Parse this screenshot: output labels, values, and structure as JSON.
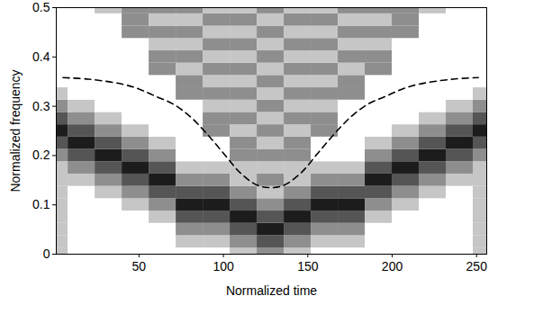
{
  "chart_data": {
    "type": "heatmap",
    "xlabel": "Normalized time",
    "ylabel": "Normalized frequency",
    "x": [
      0,
      16,
      32,
      48,
      64,
      80,
      96,
      112,
      128,
      144,
      160,
      176,
      192,
      208,
      224,
      240,
      256
    ],
    "y": [
      0,
      0.025,
      0.05,
      0.075,
      0.1,
      0.125,
      0.15,
      0.175,
      0.2,
      0.225,
      0.25,
      0.275,
      0.3,
      0.325,
      0.35,
      0.375,
      0.4,
      0.425,
      0.45,
      0.475,
      0.5
    ],
    "z": [
      [
        1,
        0,
        0,
        0,
        0,
        0,
        0,
        1,
        2,
        1,
        0,
        0,
        0,
        0,
        0,
        0,
        1
      ],
      [
        1,
        0,
        0,
        0,
        0,
        1,
        1,
        2,
        3,
        2,
        1,
        1,
        0,
        0,
        0,
        0,
        1
      ],
      [
        1,
        0,
        0,
        0,
        0,
        2,
        2,
        3,
        4,
        3,
        2,
        2,
        0,
        0,
        0,
        0,
        1
      ],
      [
        1,
        0,
        0,
        0,
        1,
        3,
        3,
        4,
        3,
        4,
        3,
        3,
        1,
        0,
        0,
        0,
        1
      ],
      [
        1,
        0,
        0,
        1,
        2,
        4,
        4,
        3,
        2,
        3,
        4,
        4,
        2,
        1,
        0,
        0,
        1
      ],
      [
        1,
        0,
        1,
        2,
        3,
        3,
        3,
        2,
        1,
        2,
        3,
        3,
        3,
        2,
        1,
        0,
        1
      ],
      [
        1,
        1,
        2,
        3,
        4,
        2,
        2,
        1,
        2,
        1,
        2,
        2,
        4,
        3,
        2,
        1,
        1
      ],
      [
        1,
        2,
        3,
        4,
        3,
        1,
        1,
        1,
        1,
        1,
        1,
        1,
        3,
        4,
        3,
        2,
        1
      ],
      [
        2,
        3,
        4,
        3,
        2,
        0,
        0,
        2,
        2,
        2,
        0,
        0,
        2,
        3,
        4,
        3,
        2
      ],
      [
        3,
        4,
        3,
        2,
        1,
        0,
        0,
        2,
        1,
        2,
        0,
        0,
        1,
        2,
        3,
        4,
        3
      ],
      [
        4,
        3,
        2,
        1,
        0,
        0,
        2,
        1,
        2,
        1,
        2,
        0,
        0,
        1,
        2,
        3,
        4
      ],
      [
        3,
        2,
        1,
        0,
        0,
        0,
        2,
        2,
        1,
        2,
        2,
        0,
        0,
        0,
        1,
        2,
        3
      ],
      [
        2,
        1,
        0,
        0,
        0,
        0,
        1,
        1,
        2,
        1,
        1,
        0,
        0,
        0,
        0,
        1,
        2
      ],
      [
        1,
        0,
        0,
        0,
        0,
        2,
        2,
        2,
        1,
        2,
        2,
        2,
        0,
        0,
        0,
        0,
        1
      ],
      [
        0,
        0,
        0,
        0,
        0,
        2,
        1,
        1,
        2,
        1,
        1,
        2,
        0,
        0,
        0,
        0,
        0
      ],
      [
        0,
        0,
        0,
        0,
        2,
        1,
        2,
        2,
        1,
        2,
        2,
        1,
        2,
        0,
        0,
        0,
        0
      ],
      [
        0,
        0,
        0,
        0,
        2,
        2,
        1,
        1,
        2,
        1,
        1,
        2,
        2,
        0,
        0,
        0,
        0
      ],
      [
        0,
        0,
        0,
        0,
        1,
        1,
        2,
        2,
        1,
        2,
        2,
        1,
        1,
        0,
        0,
        0,
        0
      ],
      [
        0,
        0,
        0,
        2,
        2,
        2,
        1,
        1,
        2,
        1,
        1,
        2,
        2,
        2,
        0,
        0,
        0
      ],
      [
        0,
        0,
        0,
        2,
        1,
        1,
        2,
        2,
        1,
        2,
        2,
        1,
        1,
        2,
        0,
        0,
        0
      ],
      [
        0,
        0,
        1,
        2,
        2,
        2,
        1,
        1,
        2,
        1,
        1,
        2,
        2,
        2,
        1,
        0,
        0
      ]
    ],
    "zlim": [
      0,
      4
    ],
    "xlim": [
      1,
      256
    ],
    "ylim": [
      0,
      0.5
    ],
    "xticks": [
      50,
      100,
      150,
      200,
      250
    ],
    "yticks": [
      0,
      0.1,
      0.2,
      0.3,
      0.4,
      0.5
    ],
    "series": [
      {
        "type": "line",
        "color": "#000000",
        "line_style": "dashed",
        "x": [
          5,
          20,
          40,
          50,
          60,
          70,
          80,
          90,
          100,
          110,
          120,
          128,
          136,
          146,
          156,
          166,
          176,
          186,
          196,
          206,
          216,
          236,
          251
        ],
        "values": [
          0.358,
          0.355,
          0.345,
          0.335,
          0.32,
          0.305,
          0.28,
          0.245,
          0.205,
          0.165,
          0.14,
          0.135,
          0.14,
          0.165,
          0.205,
          0.245,
          0.28,
          0.305,
          0.32,
          0.335,
          0.345,
          0.355,
          0.358
        ]
      }
    ]
  }
}
